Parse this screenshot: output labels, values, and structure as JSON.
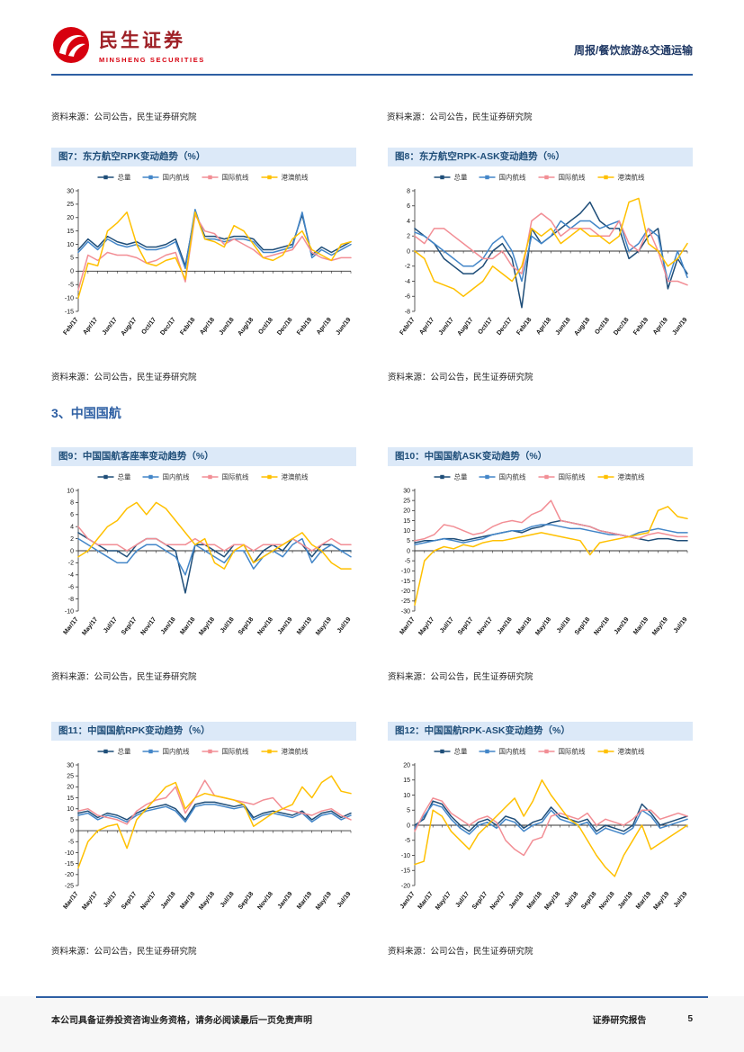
{
  "header": {
    "logo_cn": "民生证券",
    "logo_en": "MINSHENG SECURITIES",
    "report_type": "周报/餐饮旅游&交通运输"
  },
  "top_sources": {
    "left": "资料来源：公司公告，民生证券研究院",
    "right": "资料来源：公司公告，民生证券研究院"
  },
  "section_heading": "3、中国国航",
  "figures": [
    {
      "title": "图7：东方航空RPK变动趋势（%）",
      "source": "资料来源：公司公告，民生证券研究院"
    },
    {
      "title": "图8：东方航空RPK-ASK变动趋势（%）",
      "source": "资料来源：公司公告，民生证券研究院"
    },
    {
      "title": "图9：中国国航客座率变动趋势（%）",
      "source": "资料来源：公司公告，民生证券研究院"
    },
    {
      "title": "图10：中国国航ASK变动趋势（%）",
      "source": "资料来源：公司公告，民生证券研究院"
    },
    {
      "title": "图11：中国国航RPK变动趋势（%）",
      "source": "资料来源：公司公告，民生证券研究院"
    },
    {
      "title": "图12：中国国航RPK-ASK变动趋势（%）",
      "source": "资料来源：公司公告，民生证券研究院"
    }
  ],
  "footer": {
    "left": "本公司具备证券投资咨询业务资格，请务必阅读最后一页免责声明",
    "right": "证券研究报告",
    "page": "5"
  },
  "colors": {
    "navy": "#1F4E79",
    "blue": "#4386C8",
    "pink": "#F28E95",
    "gold": "#FFC000",
    "accent_blue": "#2E5FA3",
    "title_bg": "#DCE9F8",
    "logo_red": "#D7000F"
  },
  "chart_data": [
    {
      "type": "line",
      "title": "图7：东方航空RPK变动趋势（%）",
      "ylim": [
        -15,
        30
      ],
      "ytick": 5,
      "label_every": 2,
      "grid": false,
      "legend_position": "top",
      "categories": [
        "Feb/17",
        "Mar/17",
        "Apr/17",
        "May/17",
        "Jun/17",
        "Jul/17",
        "Aug/17",
        "Sep/17",
        "Oct/17",
        "Nov/17",
        "Dec/17",
        "Jan/18",
        "Feb/18",
        "Mar/18",
        "Apr/18",
        "May/18",
        "Jun/18",
        "Jul/18",
        "Aug/18",
        "Sep/18",
        "Oct/18",
        "Nov/18",
        "Dec/18",
        "Jan/19",
        "Feb/19",
        "Mar/19",
        "Apr/19",
        "May/19",
        "Jun/19"
      ],
      "series": [
        {
          "name": "总量",
          "color": "#1F4E79",
          "values": [
            8,
            12,
            9,
            13,
            11,
            10,
            11,
            9,
            9,
            10,
            12,
            2,
            22,
            13,
            13,
            12,
            13,
            13,
            12,
            8,
            8,
            9,
            10,
            21,
            6,
            9,
            7,
            9,
            11
          ]
        },
        {
          "name": "国内航线",
          "color": "#4386C8",
          "values": [
            7,
            11,
            8,
            12,
            10,
            9,
            10,
            8,
            8,
            9,
            11,
            1,
            23,
            12,
            12,
            11,
            12,
            12,
            11,
            7,
            7,
            8,
            9,
            22,
            5,
            8,
            6,
            8,
            10
          ]
        },
        {
          "name": "国际航线",
          "color": "#F28E95",
          "values": [
            -7,
            6,
            4,
            7,
            6,
            6,
            5,
            3,
            4,
            6,
            7,
            -4,
            21,
            15,
            14,
            10,
            12,
            10,
            8,
            5,
            6,
            7,
            8,
            13,
            7,
            5,
            4,
            5,
            5
          ]
        },
        {
          "name": "港澳航线",
          "color": "#FFC000",
          "values": [
            -10,
            3,
            2,
            15,
            18,
            22,
            10,
            3,
            2,
            4,
            5,
            -3,
            22,
            12,
            11,
            9,
            17,
            15,
            10,
            5,
            4,
            6,
            12,
            15,
            8,
            6,
            4,
            10,
            11
          ]
        }
      ]
    },
    {
      "type": "line",
      "title": "图8：东方航空RPK-ASK变动趋势（%）",
      "ylim": [
        -8,
        8
      ],
      "ytick": 2,
      "label_every": 2,
      "grid": false,
      "legend_position": "top",
      "categories": [
        "Feb/17",
        "Mar/17",
        "Apr/17",
        "May/17",
        "Jun/17",
        "Jul/17",
        "Aug/17",
        "Sep/17",
        "Oct/17",
        "Nov/17",
        "Dec/17",
        "Jan/18",
        "Feb/18",
        "Mar/18",
        "Apr/18",
        "May/18",
        "Jun/18",
        "Jul/18",
        "Aug/18",
        "Sep/18",
        "Oct/18",
        "Nov/18",
        "Dec/18",
        "Jan/19",
        "Feb/19",
        "Mar/19",
        "Apr/19",
        "May/19",
        "Jun/19"
      ],
      "series": [
        {
          "name": "总量",
          "color": "#1F4E79",
          "values": [
            3,
            2,
            1,
            -1,
            -2,
            -3,
            -3,
            -2,
            0,
            1,
            -1,
            -7.5,
            3,
            1,
            2,
            3,
            4,
            5,
            6.5,
            4,
            3,
            3,
            -1,
            0,
            2,
            3,
            -5,
            -1,
            -3
          ]
        },
        {
          "name": "国内航线",
          "color": "#4386C8",
          "values": [
            2.5,
            2,
            1,
            0,
            -1,
            -2,
            -2,
            -1,
            1,
            2,
            0,
            -4,
            2,
            1,
            2,
            4,
            3,
            4,
            4,
            3,
            3.5,
            4,
            0,
            1,
            3,
            2,
            -4,
            0,
            -3.5
          ]
        },
        {
          "name": "国际航线",
          "color": "#F28E95",
          "values": [
            2,
            1,
            3,
            3,
            2,
            1,
            0,
            -1,
            -1,
            0,
            -2,
            -3,
            4,
            5,
            4,
            2,
            3,
            3,
            3,
            2,
            2,
            4,
            1,
            0,
            3,
            0,
            -4,
            -4,
            -4.5
          ]
        },
        {
          "name": "港澳航线",
          "color": "#FFC000",
          "values": [
            0,
            -1,
            -4,
            -4.5,
            -5,
            -6,
            -5,
            -4,
            -2,
            -3,
            -4,
            -2,
            3,
            2,
            3,
            1,
            2,
            3,
            2,
            2,
            1,
            2,
            6.5,
            7,
            1,
            0,
            -2,
            -1,
            1
          ]
        }
      ]
    },
    {
      "type": "line",
      "title": "图9：中国国航客座率变动趋势（%）",
      "ylim": [
        -10,
        10
      ],
      "ytick": 2,
      "label_every": 2,
      "grid": false,
      "legend_position": "top",
      "categories": [
        "Mar/17",
        "Apr/17",
        "May/17",
        "Jun/17",
        "Jul/17",
        "Aug/17",
        "Sep/17",
        "Oct/17",
        "Nov/17",
        "Dec/17",
        "Jan/18",
        "Feb/18",
        "Mar/18",
        "Apr/18",
        "May/18",
        "Jun/18",
        "Jul/18",
        "Aug/18",
        "Sep/18",
        "Oct/18",
        "Nov/18",
        "Dec/18",
        "Jan/19",
        "Feb/19",
        "Mar/19",
        "Apr/19",
        "May/19",
        "Jun/19",
        "Jul/19"
      ],
      "series": [
        {
          "name": "总量",
          "color": "#1F4E79",
          "values": [
            3,
            2,
            1,
            0,
            0,
            -1,
            1,
            2,
            2,
            1,
            0,
            -7,
            1,
            1,
            0,
            -1,
            1,
            1,
            -2,
            0,
            1,
            0,
            2,
            1,
            -1,
            1,
            1,
            0,
            0
          ]
        },
        {
          "name": "国内航线",
          "color": "#4386C8",
          "values": [
            2,
            1,
            0,
            -1,
            -2,
            -2,
            0,
            1,
            1,
            0,
            -1,
            -4,
            1,
            0,
            -1,
            -2,
            0,
            0,
            -3,
            -1,
            0,
            -1,
            1,
            2,
            -2,
            0,
            1,
            0,
            -1
          ]
        },
        {
          "name": "国际航线",
          "color": "#F28E95",
          "values": [
            4,
            2,
            1,
            1,
            1,
            0,
            1,
            2,
            2,
            1,
            1,
            1,
            2,
            1,
            1,
            0,
            1,
            1,
            0,
            1,
            1,
            1,
            2,
            1,
            0,
            1,
            2,
            1,
            1
          ]
        },
        {
          "name": "港澳航线",
          "color": "#FFC000",
          "values": [
            -1,
            0,
            2,
            4,
            5,
            7,
            8,
            6,
            8,
            7,
            5,
            3,
            1,
            2,
            -2,
            -3,
            0,
            1,
            -2,
            -1,
            0,
            1,
            2,
            3,
            1,
            0,
            -2,
            -3,
            -3
          ]
        }
      ]
    },
    {
      "type": "line",
      "title": "图10：中国国航ASK变动趋势（%）",
      "ylim": [
        -30,
        30
      ],
      "ytick": 5,
      "label_every": 2,
      "grid": false,
      "legend_position": "top",
      "categories": [
        "Mar/17",
        "Apr/17",
        "May/17",
        "Jun/17",
        "Jul/17",
        "Aug/17",
        "Sep/17",
        "Oct/17",
        "Nov/17",
        "Dec/17",
        "Jan/18",
        "Feb/18",
        "Mar/18",
        "Apr/18",
        "May/18",
        "Jun/18",
        "Jul/18",
        "Aug/18",
        "Sep/18",
        "Oct/18",
        "Nov/18",
        "Dec/18",
        "Jan/19",
        "Feb/19",
        "Mar/19",
        "Apr/19",
        "May/19",
        "Jun/19",
        "Jul/19"
      ],
      "series": [
        {
          "name": "总量",
          "color": "#1F4E79",
          "values": [
            4,
            5,
            5,
            6,
            6,
            5,
            6,
            7,
            8,
            9,
            10,
            9,
            11,
            12,
            14,
            15,
            14,
            13,
            12,
            10,
            9,
            8,
            7,
            6,
            5,
            6,
            6,
            5,
            5
          ]
        },
        {
          "name": "国内航线",
          "color": "#4386C8",
          "values": [
            3,
            4,
            5,
            6,
            5,
            4,
            5,
            6,
            8,
            9,
            10,
            10,
            12,
            13,
            13,
            12,
            11,
            11,
            10,
            9,
            8,
            8,
            7,
            9,
            10,
            11,
            10,
            9,
            9
          ]
        },
        {
          "name": "国际航线",
          "color": "#F28E95",
          "values": [
            5,
            6,
            8,
            13,
            12,
            10,
            8,
            9,
            12,
            14,
            15,
            14,
            18,
            20,
            25,
            15,
            14,
            13,
            12,
            10,
            9,
            8,
            7,
            6,
            8,
            9,
            8,
            7,
            7
          ]
        },
        {
          "name": "港澳航线",
          "color": "#FFC000",
          "values": [
            -27,
            -5,
            0,
            2,
            1,
            3,
            2,
            4,
            5,
            5,
            6,
            7,
            8,
            9,
            8,
            7,
            6,
            5,
            -2,
            4,
            5,
            6,
            7,
            8,
            9,
            20,
            22,
            17,
            16
          ]
        }
      ]
    },
    {
      "type": "line",
      "title": "图11：中国国航RPK变动趋势（%）",
      "ylim": [
        -25,
        30
      ],
      "ytick": 5,
      "label_every": 2,
      "grid": false,
      "legend_position": "top",
      "categories": [
        "Mar/17",
        "Apr/17",
        "May/17",
        "Jun/17",
        "Jul/17",
        "Aug/17",
        "Sep/17",
        "Oct/17",
        "Nov/17",
        "Dec/17",
        "Jan/18",
        "Feb/18",
        "Mar/18",
        "Apr/18",
        "May/18",
        "Jun/18",
        "Jul/18",
        "Aug/18",
        "Sep/18",
        "Oct/18",
        "Nov/18",
        "Dec/18",
        "Jan/19",
        "Feb/19",
        "Mar/19",
        "Apr/19",
        "May/19",
        "Jun/19",
        "Jul/19"
      ],
      "series": [
        {
          "name": "总量",
          "color": "#1F4E79",
          "values": [
            8,
            9,
            6,
            8,
            7,
            5,
            8,
            10,
            11,
            12,
            10,
            5,
            12,
            13,
            13,
            12,
            11,
            12,
            6,
            8,
            9,
            8,
            7,
            9,
            5,
            8,
            9,
            6,
            8
          ]
        },
        {
          "name": "国内航线",
          "color": "#4386C8",
          "values": [
            7,
            8,
            5,
            7,
            6,
            4,
            7,
            9,
            10,
            11,
            9,
            4,
            11,
            12,
            12,
            11,
            10,
            11,
            5,
            7,
            8,
            7,
            6,
            8,
            4,
            7,
            8,
            5,
            7
          ]
        },
        {
          "name": "国际航线",
          "color": "#F28E95",
          "values": [
            9,
            10,
            7,
            6,
            5,
            3,
            9,
            12,
            14,
            15,
            20,
            8,
            15,
            23,
            16,
            15,
            14,
            13,
            12,
            14,
            15,
            10,
            9,
            8,
            7,
            9,
            10,
            7,
            5
          ]
        },
        {
          "name": "港澳航线",
          "color": "#FFC000",
          "values": [
            -17,
            -5,
            0,
            2,
            3,
            -8,
            5,
            10,
            15,
            20,
            22,
            10,
            15,
            17,
            16,
            15,
            14,
            12,
            2,
            5,
            8,
            10,
            12,
            20,
            15,
            22,
            25,
            18,
            17
          ]
        }
      ]
    },
    {
      "type": "line",
      "title": "图12：中国国航RPK-ASK变动趋势（%）",
      "ylim": [
        -20,
        20
      ],
      "ytick": 5,
      "label_every": 2,
      "grid": false,
      "legend_position": "top",
      "categories": [
        "Jan/17",
        "Feb/17",
        "Mar/17",
        "Apr/17",
        "May/17",
        "Jun/17",
        "Jul/17",
        "Aug/17",
        "Sep/17",
        "Oct/17",
        "Nov/17",
        "Dec/17",
        "Jan/18",
        "Feb/18",
        "Mar/18",
        "Apr/18",
        "May/18",
        "Jun/18",
        "Jul/18",
        "Aug/18",
        "Sep/18",
        "Oct/18",
        "Nov/18",
        "Dec/18",
        "Jan/19",
        "Feb/19",
        "Mar/19",
        "Apr/19",
        "May/19",
        "Jun/19",
        "Jul/19"
      ],
      "series": [
        {
          "name": "总量",
          "color": "#1F4E79",
          "values": [
            0,
            2,
            8,
            7,
            3,
            0,
            -2,
            1,
            2,
            0,
            3,
            2,
            -1,
            1,
            2,
            6,
            3,
            2,
            1,
            2,
            -2,
            0,
            -1,
            -2,
            0,
            7,
            4,
            0,
            1,
            2,
            3
          ]
        },
        {
          "name": "国内航线",
          "color": "#4386C8",
          "values": [
            -1,
            3,
            7,
            6,
            2,
            -1,
            -3,
            0,
            1,
            -1,
            2,
            1,
            -2,
            0,
            1,
            5,
            2,
            1,
            0,
            1,
            -3,
            -1,
            -2,
            -3,
            -1,
            5,
            3,
            -1,
            0,
            1,
            2
          ]
        },
        {
          "name": "国际航线",
          "color": "#F28E95",
          "values": [
            -2,
            4,
            9,
            8,
            4,
            2,
            0,
            2,
            3,
            1,
            -5,
            -8,
            -10,
            -5,
            -4,
            3,
            4,
            3,
            2,
            4,
            0,
            2,
            1,
            0,
            2,
            5,
            5,
            2,
            3,
            4,
            3
          ]
        },
        {
          "name": "港澳航线",
          "color": "#FFC000",
          "values": [
            -13,
            -12,
            5,
            3,
            -2,
            -5,
            -8,
            -3,
            0,
            3,
            6,
            9,
            3,
            8,
            15,
            10,
            6,
            2,
            0,
            -5,
            -10,
            -14,
            -17,
            -10,
            -5,
            0,
            -8,
            -6,
            -4,
            -2,
            0
          ]
        }
      ]
    }
  ]
}
